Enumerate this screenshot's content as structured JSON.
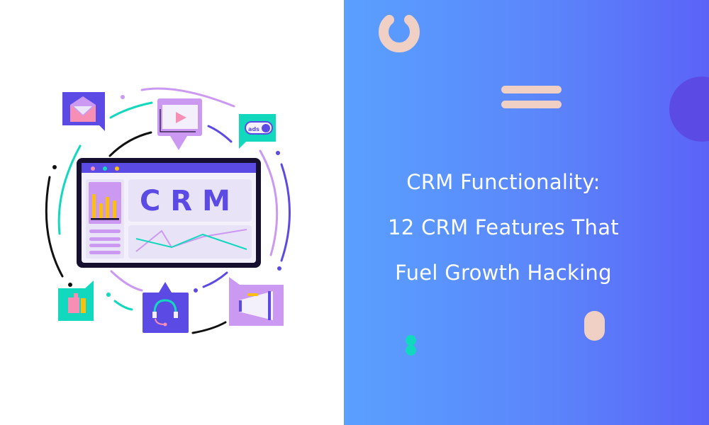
{
  "illustration": {
    "screen_text": "CRM",
    "ads_toggle_label": "ads"
  },
  "banner": {
    "title_lines": [
      "CRM Functionality:",
      "12 CRM Features That",
      "Fuel Growth Hacking"
    ]
  },
  "colors": {
    "gradient_start": "#5aa0ff",
    "gradient_end": "#5b63f7",
    "purple": "#5c4ae4",
    "lilac": "#cc99f2",
    "teal": "#12d8bd",
    "peach": "#f0cfc4",
    "yellow": "#fbbf0e",
    "pink": "#f78fb5"
  }
}
